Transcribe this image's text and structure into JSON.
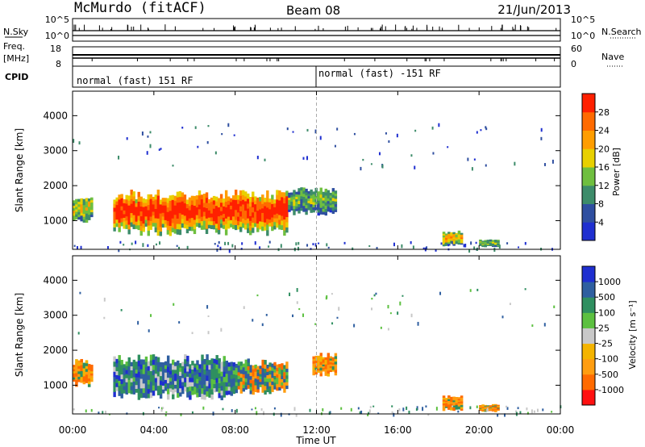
{
  "header": {
    "station": "McMurdo (fitACF)",
    "beam": "Beam 08",
    "date": "21/Jun/2013"
  },
  "noise_panel": {
    "left_label": "N.Sky",
    "right_label": "N.Search",
    "left_ticks": [
      "10^5",
      "10^0"
    ],
    "right_ticks": [
      "10^5",
      "10^0"
    ]
  },
  "freq_panel": {
    "left_label_line1": "Freq.",
    "left_label_line2": "[MHz]",
    "right_label": "Nave",
    "left_ticks": [
      "18",
      "8"
    ],
    "right_ticks": [
      "60",
      "0"
    ]
  },
  "cpid_panel": {
    "label": "CPID",
    "segments": [
      {
        "start_hour": 0,
        "text": "normal (fast) 151 RF"
      },
      {
        "start_hour": 12,
        "text": "normal (fast) -151 RF"
      }
    ]
  },
  "time_axis": {
    "label": "Time UT",
    "range_hours": [
      0,
      24
    ],
    "tick_labels": [
      "00:00",
      "04:00",
      "08:00",
      "12:00",
      "16:00",
      "20:00",
      "00:00"
    ]
  },
  "colors": {
    "power": [
      "#1f2fd0",
      "#2f4fa0",
      "#3d8c6a",
      "#6fbf3f",
      "#e8d000",
      "#ff9d00",
      "#ff6a00",
      "#ff2000"
    ],
    "velocity": [
      "#ff1010",
      "#ff6a00",
      "#ff9d10",
      "#f4b400",
      "#c8c8c8",
      "#5cc040",
      "#2f8f60",
      "#2f5fa0",
      "#1f2fd0"
    ]
  },
  "chart_data": [
    {
      "type": "heatmap",
      "title": "",
      "ylabel": "Slant Range [km]",
      "xlabel": "",
      "ylim": [
        180,
        4700
      ],
      "yticks": [
        1000,
        2000,
        3000,
        4000
      ],
      "colorbar": {
        "label": "Power [dB]",
        "ticks": [
          "4",
          "8",
          "12",
          "16",
          "20",
          "24",
          "28"
        ],
        "range": [
          0,
          32
        ]
      },
      "echo_regions": [
        {
          "t_start": 0.0,
          "t_end": 1.0,
          "r_min": 1000,
          "r_max": 1700,
          "level": 0.45
        },
        {
          "t_start": 2.0,
          "t_end": 10.6,
          "r_min": 650,
          "r_max": 1800,
          "level": 0.8
        },
        {
          "t_start": 10.6,
          "t_end": 13.0,
          "r_min": 1200,
          "r_max": 1900,
          "level": 0.3
        },
        {
          "t_start": 18.2,
          "t_end": 19.2,
          "r_min": 300,
          "r_max": 700,
          "level": 0.5
        },
        {
          "t_start": 20.0,
          "t_end": 21.0,
          "r_min": 250,
          "r_max": 450,
          "level": 0.35
        }
      ]
    },
    {
      "type": "heatmap",
      "title": "",
      "ylabel": "Slant Range [km]",
      "xlabel": "Time UT",
      "ylim": [
        180,
        4700
      ],
      "yticks": [
        1000,
        2000,
        3000,
        4000
      ],
      "colorbar": {
        "label": "Velocity [m s⁻¹]",
        "ticks": [
          "-1000",
          "-500",
          "-100",
          "-25",
          "25",
          "100",
          "500",
          "1000"
        ]
      },
      "echo_regions": [
        {
          "t_start": 0.0,
          "t_end": 1.0,
          "r_min": 1000,
          "r_max": 1700,
          "velocity_level": "negative"
        },
        {
          "t_start": 2.0,
          "t_end": 8.0,
          "r_min": 650,
          "r_max": 1800,
          "velocity_level": "positive"
        },
        {
          "t_start": 8.0,
          "t_end": 10.6,
          "r_min": 800,
          "r_max": 1700,
          "velocity_level": "mixed"
        },
        {
          "t_start": 11.8,
          "t_end": 13.0,
          "r_min": 1300,
          "r_max": 1900,
          "velocity_level": "negative"
        },
        {
          "t_start": 18.2,
          "t_end": 19.2,
          "r_min": 300,
          "r_max": 700,
          "velocity_level": "negative"
        },
        {
          "t_start": 20.0,
          "t_end": 21.0,
          "r_min": 250,
          "r_max": 450,
          "velocity_level": "negative"
        }
      ]
    }
  ]
}
